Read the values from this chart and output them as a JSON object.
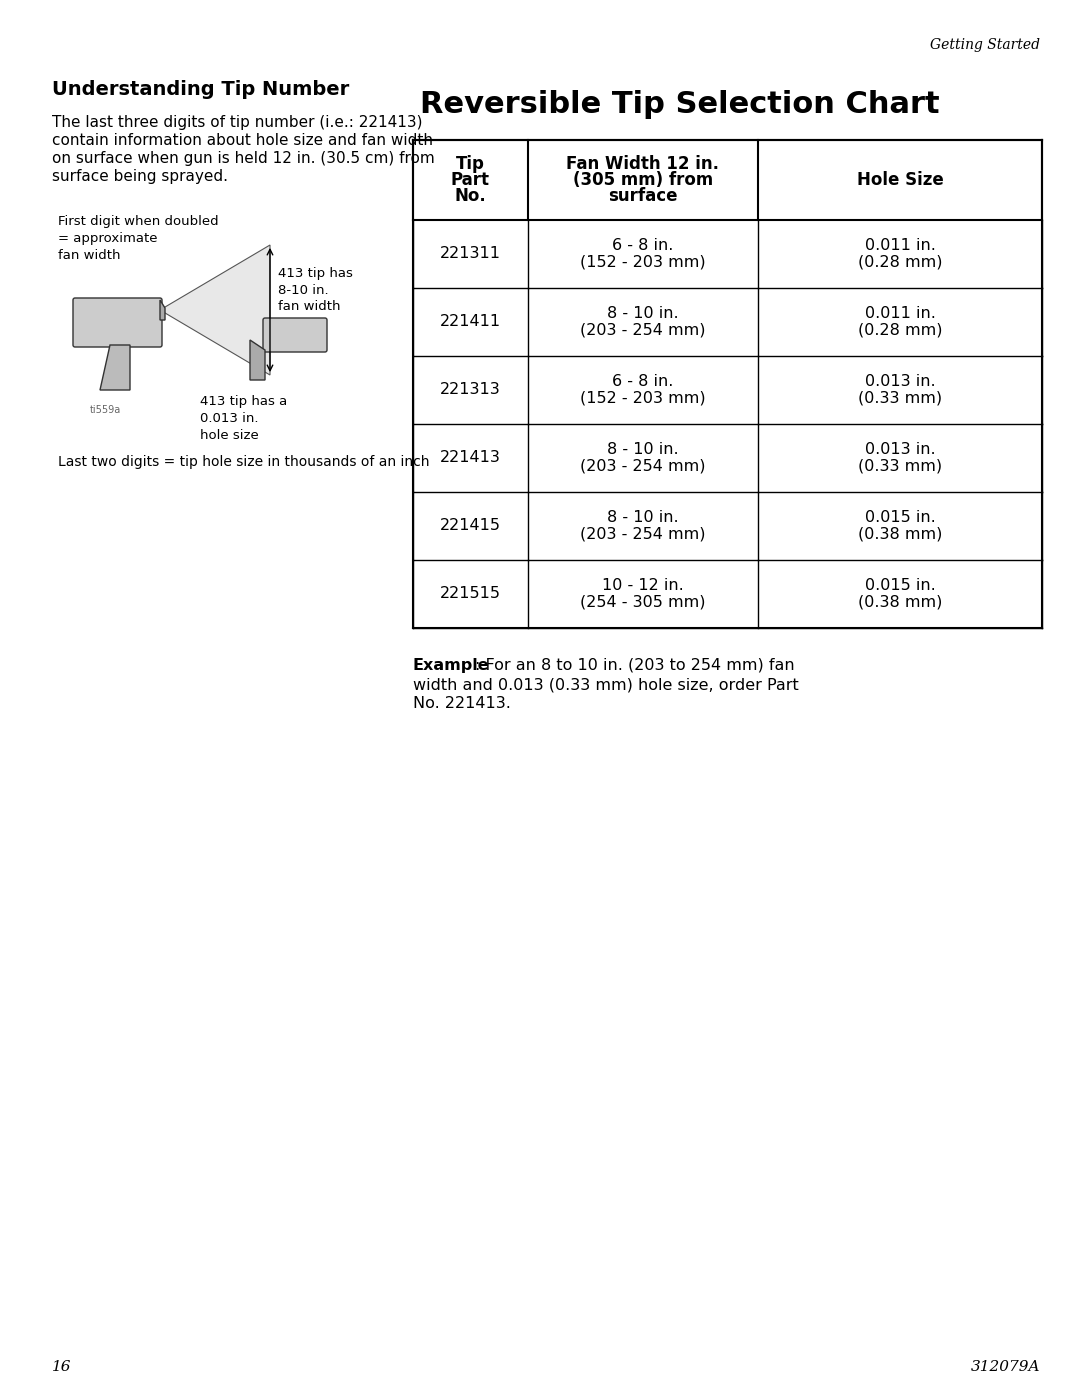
{
  "page_header": "Getting Started",
  "page_num_left": "16",
  "page_num_right": "312079A",
  "section_title": "Understanding Tip Number",
  "section_body": "The last three digits of tip number (i.e.: 221413)\ncontain information about hole size and fan width\non surface when gun is held 12 in. (30.5 cm) from\nsurface being sprayed.",
  "label_first_digit": "First digit when doubled\n= approximate\nfan width",
  "label_413_fanwidth": "413 tip has\n8-10 in.\nfan width",
  "label_413_holesize": "413 tip has a\n0.013 in.\nhole size",
  "label_last_two": "Last two digits = tip hole size in thousands of an inch",
  "chart_title": "Reversible Tip Selection Chart",
  "col_headers": [
    "Tip\nPart\nNo.",
    "Fan Width 12 in.\n(305 mm) from\nsurface",
    "Hole Size"
  ],
  "table_data": [
    [
      "221311",
      "6 - 8 in.\n(152 - 203 mm)",
      "0.011 in.\n(0.28 mm)"
    ],
    [
      "221411",
      "8 - 10 in.\n(203 - 254 mm)",
      "0.011 in.\n(0.28 mm)"
    ],
    [
      "221313",
      "6 - 8 in.\n(152 - 203 mm)",
      "0.013 in.\n(0.33 mm)"
    ],
    [
      "221413",
      "8 - 10 in.\n(203 - 254 mm)",
      "0.013 in.\n(0.33 mm)"
    ],
    [
      "221415",
      "8 - 10 in.\n(203 - 254 mm)",
      "0.015 in.\n(0.38 mm)"
    ],
    [
      "221515",
      "10 - 12 in.\n(254 - 305 mm)",
      "0.015 in.\n(0.38 mm)"
    ]
  ],
  "example_bold": "Example",
  "example_text": ": For an 8 to 10 in. (203 to 254 mm) fan\nwidth and 0.013 (0.33 mm) hole size, order Part\nNo. 221413.",
  "bg_color": "#ffffff",
  "text_color": "#000000",
  "table_border_color": "#000000",
  "header_bg": "#ffffff"
}
